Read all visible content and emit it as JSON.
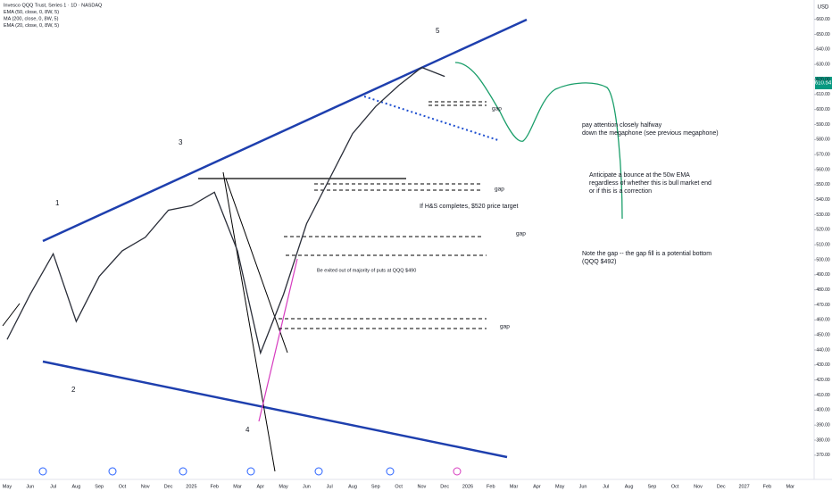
{
  "chart_data": {
    "type": "line",
    "legend": [
      "Invesco QQQ Trust, Series 1 · 1D · NASDAQ",
      "EMA (50, close, 0, 8W, 5)",
      "MA (200, close, 0, 8W, 5)",
      "EMA (20, close, 0, 8W, 5)"
    ],
    "currency": "USD",
    "last_price_label": "610.54",
    "categories": [
      "May",
      "Jun",
      "Jul",
      "Aug",
      "Sep",
      "Oct",
      "Nov",
      "Dec",
      "2025",
      "Feb",
      "Mar",
      "Apr",
      "May",
      "Jun",
      "Jul",
      "Aug",
      "Sep",
      "Oct",
      "Nov",
      "Dec",
      "2026",
      "Feb",
      "Mar",
      "Apr",
      "May",
      "Jun",
      "Jul",
      "Aug",
      "Sep",
      "Oct",
      "Nov",
      "Dec",
      "2027",
      "Feb",
      "Mar"
    ],
    "series": [
      {
        "name": "QQQ",
        "color": "#2a2e39",
        "values": [
          447,
          477,
          504,
          459,
          489,
          506,
          515,
          533,
          536,
          545,
          506,
          438,
          477,
          524,
          554,
          584,
          602,
          616,
          628,
          622,
          null,
          null,
          null,
          null,
          null,
          null,
          null,
          null,
          null,
          null,
          null,
          null,
          null,
          null,
          null
        ]
      }
    ],
    "ylim": [
      361,
      661
    ],
    "yticks": [
      {
        "value": 370,
        "label": "370.00"
      },
      {
        "value": 380,
        "label": "380.00"
      },
      {
        "value": 390,
        "label": "390.00"
      },
      {
        "value": 400,
        "label": "400.00"
      },
      {
        "value": 410,
        "label": "410.00"
      },
      {
        "value": 420,
        "label": "420.00"
      },
      {
        "value": 430,
        "label": "430.00"
      },
      {
        "value": 440,
        "label": "440.00"
      },
      {
        "value": 450,
        "label": "450.00"
      },
      {
        "value": 460,
        "label": "460.00"
      },
      {
        "value": 470,
        "label": "470.00"
      },
      {
        "value": 480,
        "label": "480.00"
      },
      {
        "value": 490,
        "label": "490.00"
      },
      {
        "value": 500,
        "label": "500.00"
      },
      {
        "value": 510,
        "label": "510.00"
      },
      {
        "value": 520,
        "label": "520.00"
      },
      {
        "value": 530,
        "label": "530.00"
      },
      {
        "value": 540,
        "label": "540.00"
      },
      {
        "value": 550,
        "label": "550.00"
      },
      {
        "value": 560,
        "label": "560.00"
      },
      {
        "value": 570,
        "label": "570.00"
      },
      {
        "value": 580,
        "label": "580.00"
      },
      {
        "value": 590,
        "label": "590.00"
      },
      {
        "value": 600,
        "label": "600.00"
      },
      {
        "value": 610,
        "label": "610.00"
      },
      {
        "value": 620,
        "label": "620.00"
      },
      {
        "value": 630,
        "label": "630.00"
      },
      {
        "value": 640,
        "label": "640.00"
      },
      {
        "value": 650,
        "label": "650.00"
      },
      {
        "value": 660,
        "label": "660.00"
      }
    ],
    "annotations": [
      {
        "lines": [
          "5"
        ]
      },
      {
        "lines": [
          "3"
        ]
      },
      {
        "lines": [
          "1"
        ]
      },
      {
        "lines": [
          "2"
        ]
      },
      {
        "lines": [
          "4"
        ]
      },
      {
        "lines": [
          "gap"
        ]
      },
      {
        "lines": [
          "gap"
        ]
      },
      {
        "lines": [
          "gap"
        ]
      },
      {
        "lines": [
          "gap"
        ]
      },
      {
        "lines": [
          "pay attention closely halfway",
          "down the megaphone (see previous megaphone)"
        ]
      },
      {
        "lines": [
          "Anticipate a bounce at the 50w EMA",
          "regardless of whether this is bull market end",
          "or if this is a correction"
        ]
      },
      {
        "lines": [
          "If H&S completes, $520 price target"
        ]
      },
      {
        "lines": [
          "Note the gap -- the gap fill is a potential bottom",
          "(QQQ $492)"
        ]
      },
      {
        "lines": [
          "Be exited out of majority of puts at QQQ $490"
        ]
      }
    ]
  }
}
